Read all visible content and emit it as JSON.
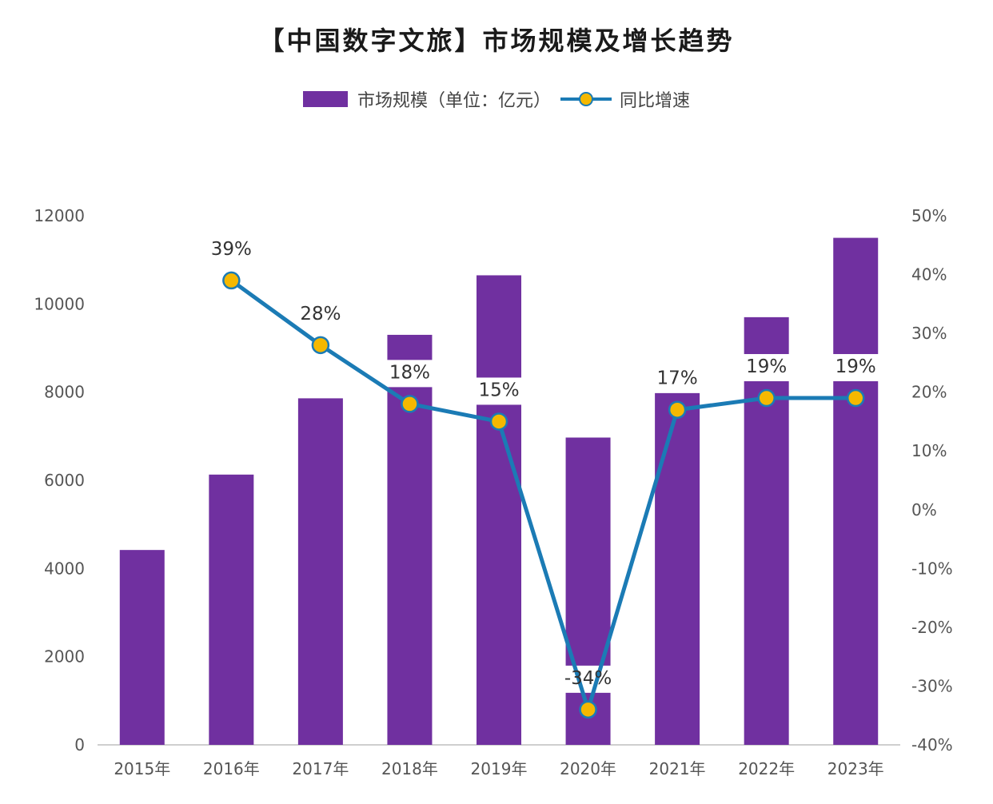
{
  "title": "【中国数字文旅】市场规模及增长趋势",
  "legend": {
    "bar_label": "市场规模（单位：亿元）",
    "line_label": "同比增速"
  },
  "colors": {
    "bar": "#7030a0",
    "line": "#1b7bb5",
    "marker": "#f5b800",
    "label_bg": "#ffffff"
  },
  "chart_data": {
    "type": "bar",
    "title": "【中国数字文旅】市场规模及增长趋势",
    "categories": [
      "2015年",
      "2016年",
      "2017年",
      "2018年",
      "2019年",
      "2020年",
      "2021年",
      "2022年",
      "2023年"
    ],
    "series": [
      {
        "name": "市场规模（单位：亿元）",
        "type": "bar",
        "axis": "left",
        "values": [
          4420,
          6130,
          7860,
          9300,
          10650,
          6970,
          7980,
          9700,
          11500
        ]
      },
      {
        "name": "同比增速",
        "type": "line",
        "axis": "right",
        "values": [
          null,
          39,
          28,
          18,
          15,
          -34,
          17,
          19,
          19
        ],
        "labels": [
          "",
          "39%",
          "28%",
          "18%",
          "15%",
          "-34%",
          "17%",
          "19%",
          "19%"
        ]
      }
    ],
    "y_left": {
      "min": 0,
      "max": 12000,
      "ticks": [
        "0",
        "2000",
        "4000",
        "6000",
        "8000",
        "10000",
        "12000"
      ]
    },
    "y_right": {
      "min": -40,
      "max": 50,
      "ticks": [
        "-40%",
        "-30%",
        "-20%",
        "-10%",
        "0%",
        "10%",
        "20%",
        "30%",
        "40%",
        "50%"
      ]
    },
    "grid": false,
    "legend_position": "top-center"
  }
}
